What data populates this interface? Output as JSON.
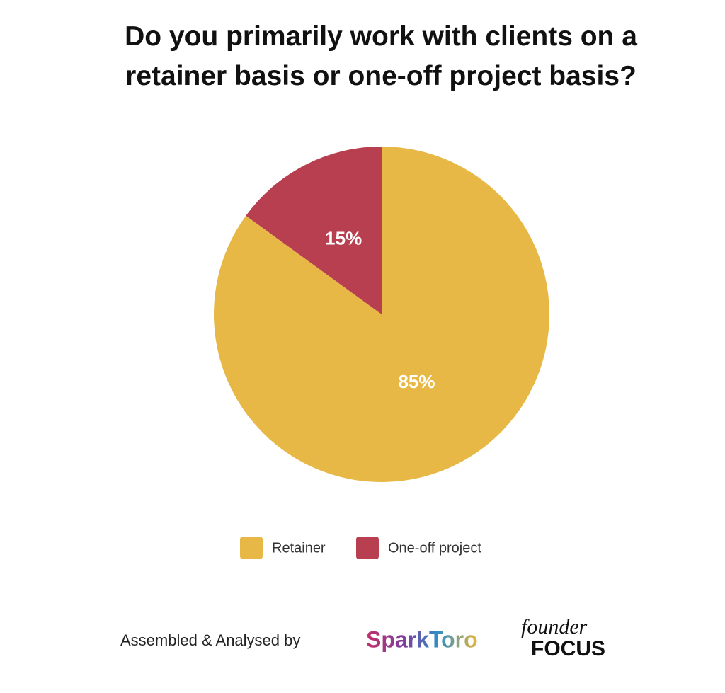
{
  "chart_data": {
    "type": "pie",
    "title": "Do you primarily work with clients on a retainer basis or one-off project basis?",
    "categories": [
      "Retainer",
      "One-off project"
    ],
    "values": [
      85,
      15
    ],
    "value_labels": [
      "85%",
      "15%"
    ],
    "colors": [
      "#e7b846",
      "#b83f4f"
    ],
    "legend": "bottom",
    "credit": "Assembled & Analysed by",
    "logos": [
      "SparkToro",
      "founder",
      "FOCUS"
    ]
  }
}
